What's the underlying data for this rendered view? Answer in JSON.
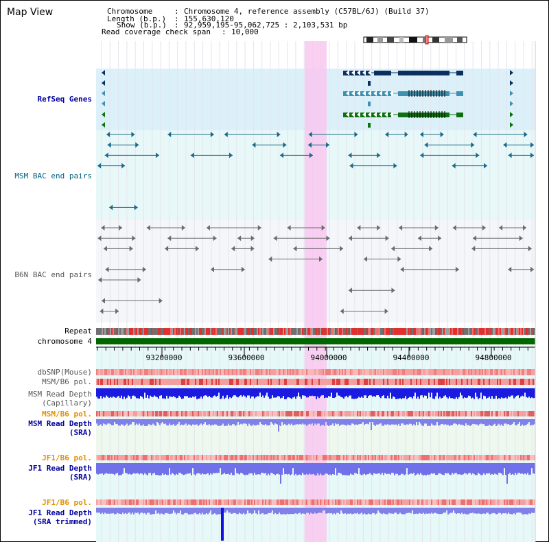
{
  "view_title": "Map View",
  "info": {
    "chromosome_label": "Chromosome",
    "chromosome_value": "Chromosome 4, reference assembly (C57BL/6J) (Build 37)",
    "length_label": "Length (b.p.)",
    "length_value": "155,630,120",
    "show_label": "Show (b.p.)",
    "show_value": "92,959,195-95,062,725 : 2,103,531 bp",
    "coverage_label": "Read coverage check span",
    "coverage_value": "10,000"
  },
  "tracks": {
    "refseq": "RefSeq Genes",
    "msm_bac": "MSM BAC end pairs",
    "b6n_bac": "B6N BAC end pairs",
    "repeat": "Repeat",
    "chromosome": "chromosome 4",
    "dbsnp": "dbSNP(Mouse)",
    "msm_b6_pol_1": "MSM/B6 pol.",
    "msm_depth_cap_1": "MSM Read Depth",
    "msm_depth_cap_2": "(Capillary)",
    "msm_b6_pol_2": "MSM/B6 pol.",
    "msm_depth_sra_1": "MSM Read Depth",
    "msm_depth_sra_2": "(SRA)",
    "jf1_b6_pol_1": "JF1/B6 pol.",
    "jf1_depth_sra_1": "JF1 Read Depth",
    "jf1_depth_sra_2": "(SRA)",
    "jf1_b6_pol_2": "JF1/B6 pol.",
    "jf1_depth_trim_1": "JF1 Read Depth",
    "jf1_depth_trim_2": "(SRA trimmed)"
  },
  "axis": {
    "ticks": [
      "93200000",
      "93600000",
      "94000000",
      "94400000",
      "94800000"
    ]
  },
  "colors": {
    "refseq_label": "#0000a0",
    "msm_label": "#006080",
    "b6n_label": "#555555",
    "orange_label": "#e09000",
    "blue_label": "#0000a0",
    "highlight": "#f8c8f0",
    "chromosome_bar": "#006600"
  }
}
